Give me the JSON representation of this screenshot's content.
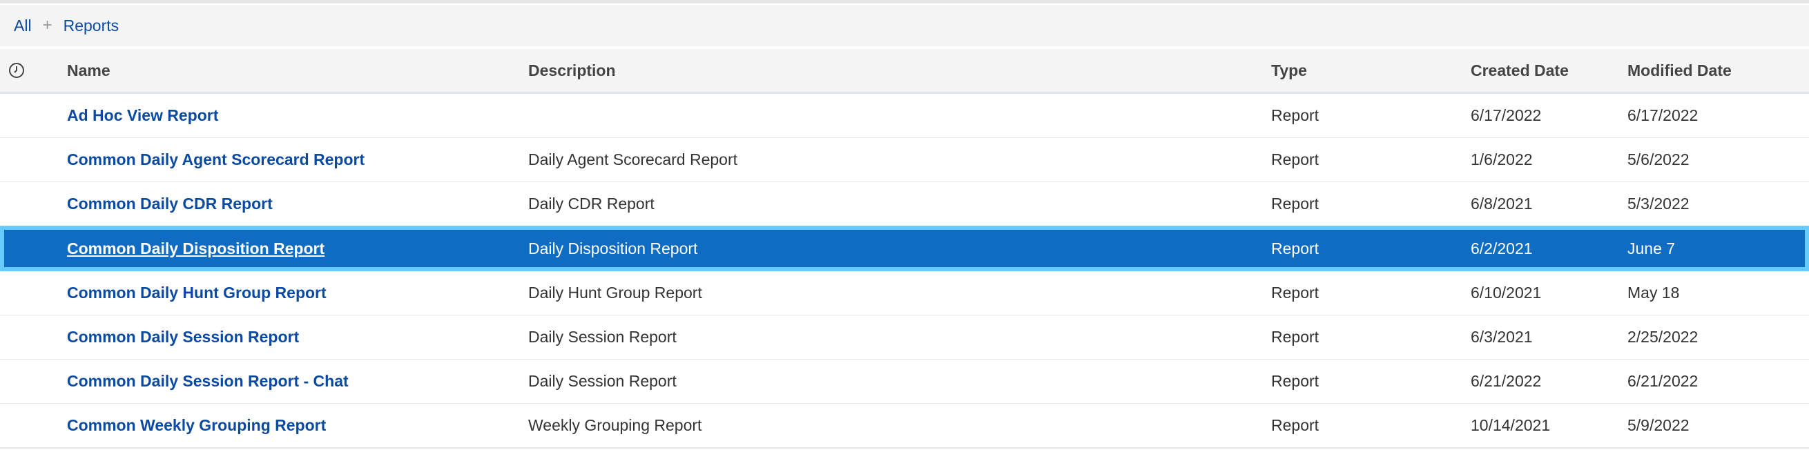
{
  "breadcrumb": {
    "items": [
      "All",
      "Reports"
    ],
    "separator": "+"
  },
  "table": {
    "columns": [
      "Name",
      "Description",
      "Type",
      "Created Date",
      "Modified Date"
    ],
    "history_icon": "clock-icon",
    "selected_index": 3,
    "colors": {
      "link": "#0b4aa2",
      "selected_bg": "#0f6cc2",
      "selected_border": "#66ccff"
    },
    "rows": [
      {
        "name": "Ad Hoc View Report",
        "description": "",
        "type": "Report",
        "created": "6/17/2022",
        "modified": "6/17/2022"
      },
      {
        "name": "Common Daily Agent Scorecard Report",
        "description": "Daily Agent Scorecard Report",
        "type": "Report",
        "created": "1/6/2022",
        "modified": "5/6/2022"
      },
      {
        "name": "Common Daily CDR Report",
        "description": "Daily CDR Report",
        "type": "Report",
        "created": "6/8/2021",
        "modified": "5/3/2022"
      },
      {
        "name": "Common Daily Disposition Report",
        "description": "Daily Disposition Report",
        "type": "Report",
        "created": "6/2/2021",
        "modified": "June 7"
      },
      {
        "name": "Common Daily Hunt Group Report",
        "description": "Daily Hunt Group Report",
        "type": "Report",
        "created": "6/10/2021",
        "modified": "May 18"
      },
      {
        "name": "Common Daily Session Report",
        "description": "Daily Session Report",
        "type": "Report",
        "created": "6/3/2021",
        "modified": "2/25/2022"
      },
      {
        "name": "Common Daily Session Report - Chat",
        "description": "Daily Session Report",
        "type": "Report",
        "created": "6/21/2022",
        "modified": "6/21/2022"
      },
      {
        "name": "Common Weekly Grouping Report",
        "description": "Weekly Grouping Report",
        "type": "Report",
        "created": "10/14/2021",
        "modified": "5/9/2022"
      }
    ]
  }
}
